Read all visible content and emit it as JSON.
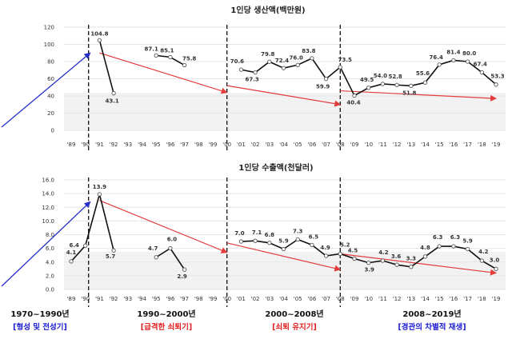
{
  "chart_data": [
    {
      "type": "line",
      "title": "1인당 생산액(백만원)",
      "ylim": [
        0,
        120
      ],
      "yticks": [
        0,
        20,
        40,
        60,
        80,
        100,
        120
      ],
      "categories": [
        "'89",
        "'90",
        "'91",
        "'92",
        "'93",
        "'94",
        "'95",
        "'96",
        "'97",
        "'98",
        "'99",
        "'00",
        "'01",
        "'02",
        "'03",
        "'04",
        "'05",
        "'06",
        "'07",
        "'08",
        "'09",
        "'10",
        "'11",
        "'12",
        "'13",
        "'14",
        "'15",
        "'16",
        "'17",
        "'18",
        "'19"
      ],
      "segments": [
        {
          "x": [
            "'91",
            "'92"
          ],
          "values": [
            104.8,
            43.1
          ]
        },
        {
          "x": [
            "'95",
            "'96",
            "'97"
          ],
          "values": [
            87.1,
            85.1,
            75.8
          ]
        },
        {
          "x": [
            "'01",
            "'02",
            "'03",
            "'04",
            "'05",
            "'06",
            "'07",
            "'08",
            "'09",
            "'10",
            "'11",
            "'12",
            "'13",
            "'14",
            "'15",
            "'16",
            "'17",
            "'18",
            "'19"
          ],
          "values": [
            70.6,
            67.3,
            79.8,
            72.4,
            76.0,
            83.8,
            59.9,
            73.5,
            40.4,
            49.5,
            54.0,
            52.8,
            51.8,
            55.6,
            76.4,
            81.4,
            80.0,
            67.4,
            53.3
          ]
        }
      ],
      "labels": [
        "104.8",
        "43.1",
        "87.1",
        "85.1",
        "75.8",
        "70.6",
        "67.3",
        "79.8",
        "72.4",
        "76.0",
        "83.8",
        "59.9",
        "73.5",
        "40.4",
        "49.5",
        "54.0",
        "52.8",
        "51.8",
        "55.6",
        "76.4",
        "81.4",
        "80.0",
        "67.4",
        "53.3"
      ],
      "trend_arrows": [
        {
          "from": [
            "'91",
            90
          ],
          "to": [
            "'00",
            44
          ]
        },
        {
          "from": [
            "'00",
            52
          ],
          "to": [
            "'08",
            30
          ]
        },
        {
          "from": [
            "'08",
            46
          ],
          "to": [
            "'19",
            37
          ]
        }
      ],
      "blue_arrow": {
        "to": [
          "'90",
          90
        ]
      },
      "dividers": [
        "'90",
        "'00",
        "'08"
      ],
      "grid": true
    },
    {
      "type": "line",
      "title": "1인당 수출액(천달러)",
      "ylim": [
        0,
        16
      ],
      "yticks": [
        0.0,
        2.0,
        4.0,
        6.0,
        8.0,
        10.0,
        12.0,
        14.0,
        16.0
      ],
      "categories": [
        "'89",
        "'90",
        "'91",
        "'92",
        "'93",
        "'94",
        "'95",
        "'96",
        "'97",
        "'98",
        "'99",
        "'00",
        "'01",
        "'02",
        "'03",
        "'04",
        "'05",
        "'06",
        "'07",
        "'08",
        "'09",
        "'10",
        "'11",
        "'12",
        "'13",
        "'14",
        "'15",
        "'16",
        "'17",
        "'18",
        "'19"
      ],
      "segments": [
        {
          "x": [
            "'89",
            "'90",
            "'91",
            "'92"
          ],
          "values": [
            4.1,
            6.4,
            13.9,
            5.7
          ]
        },
        {
          "x": [
            "'95",
            "'96",
            "'97"
          ],
          "values": [
            4.7,
            6.0,
            2.9
          ]
        },
        {
          "x": [
            "'01",
            "'02",
            "'03",
            "'04",
            "'05",
            "'06",
            "'07",
            "'08",
            "'09",
            "'10",
            "'11",
            "'12",
            "'13",
            "'14",
            "'15",
            "'16",
            "'17",
            "'18",
            "'19"
          ],
          "values": [
            7.0,
            7.1,
            6.8,
            5.9,
            7.3,
            6.5,
            4.9,
            5.2,
            4.5,
            3.9,
            4.2,
            3.6,
            3.3,
            4.8,
            6.3,
            6.3,
            5.9,
            4.2,
            3.0
          ]
        }
      ],
      "labels": [
        "4.1",
        "6.4",
        "13.9",
        "5.7",
        "4.7",
        "6.0",
        "2.9",
        "7.0",
        "7.1",
        "6.8",
        "5.9",
        "7.3",
        "6.5",
        "4.9",
        "5.2",
        "4.5",
        "3.9",
        "4.2",
        "3.6",
        "3.3",
        "4.8",
        "6.3",
        "6.3",
        "5.9",
        "4.2",
        "3.0"
      ],
      "trend_arrows": [
        {
          "from": [
            "'91",
            13.0
          ],
          "to": [
            "'00",
            5.4
          ]
        },
        {
          "from": [
            "'00",
            6.8
          ],
          "to": [
            "'08",
            2.9
          ]
        },
        {
          "from": [
            "'08",
            5.2
          ],
          "to": [
            "'19",
            2.4
          ]
        }
      ],
      "blue_arrow": {
        "to": [
          "'90",
          12.8
        ]
      },
      "dividers": [
        "'90",
        "'00",
        "'08"
      ],
      "grid": true
    }
  ],
  "periods": [
    {
      "range": "1970~1990년",
      "desc": "[형성 및 전성기]",
      "color": "#1a1ad0"
    },
    {
      "range": "1990~2000년",
      "desc": "[급격한 쇠퇴기]",
      "color": "#e02020"
    },
    {
      "range": "2000~2008년",
      "desc": "[쇠퇴 유지기]",
      "color": "#e02020"
    },
    {
      "range": "2008~2019년",
      "desc": "[경관의 차별적 재생]",
      "color": "#1a1ad0"
    }
  ],
  "colors": {
    "line": "#111111",
    "trend": "#e23c3c",
    "blue": "#2830c8",
    "grid": "#e6e6e6",
    "band": "#f2f2f2"
  }
}
